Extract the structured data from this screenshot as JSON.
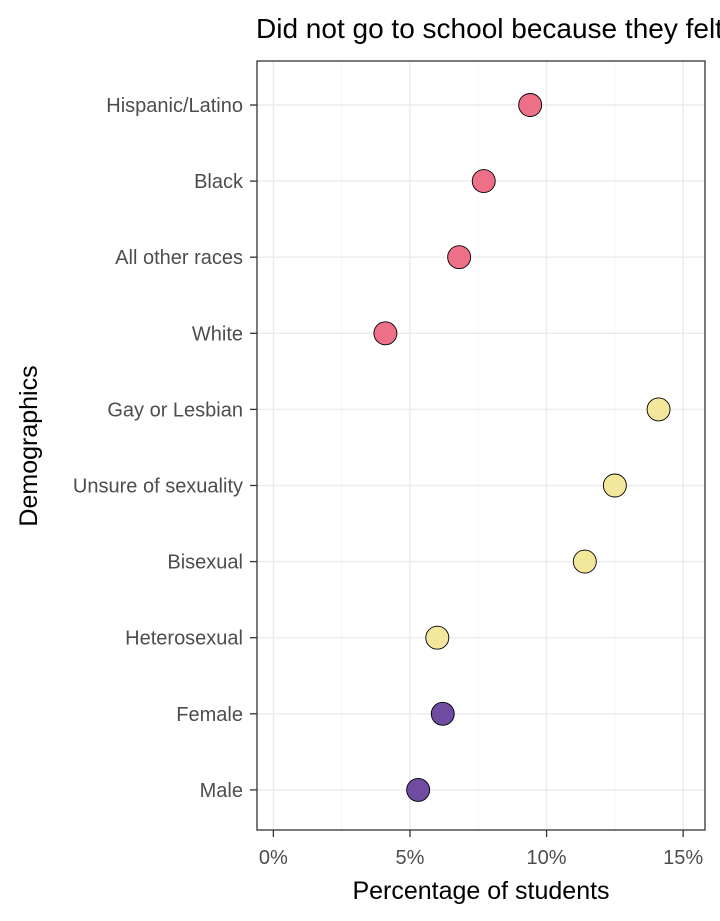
{
  "chart_data": {
    "type": "scatter",
    "title": "Did not go to school because they felt unsafe",
    "xlabel": "Percentage of students",
    "ylabel": "Demographics",
    "xlim": [
      -0.6,
      15.8
    ],
    "x_ticks": [
      0,
      5,
      10,
      15
    ],
    "x_tick_labels": [
      "0%",
      "5%",
      "10%",
      "15%"
    ],
    "grid": true,
    "legend": "none",
    "categories": [
      "Hispanic/Latino",
      "Black",
      "All other races",
      "White",
      "Gay or Lesbian",
      "Unsure of sexuality",
      "Bisexual",
      "Heterosexual",
      "Female",
      "Male"
    ],
    "values": [
      9.4,
      7.7,
      6.8,
      4.1,
      14.1,
      12.5,
      11.4,
      6.0,
      6.2,
      5.3
    ],
    "colors": [
      "#ee6f88",
      "#ee6f88",
      "#ee6f88",
      "#ee6f88",
      "#f3e79b",
      "#f3e79b",
      "#f3e79b",
      "#f3e79b",
      "#6f4ba1",
      "#6f4ba1"
    ]
  }
}
